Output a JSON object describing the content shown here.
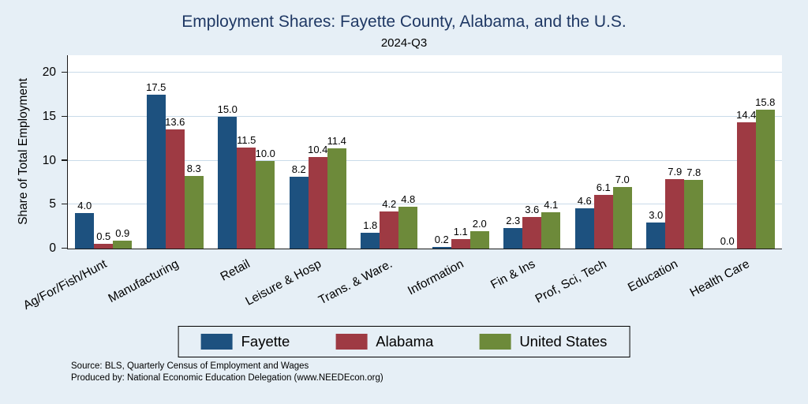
{
  "chart_data": {
    "type": "bar",
    "title": "Employment Shares: Fayette County, Alabama, and the U.S.",
    "subtitle": "2024-Q3",
    "ylabel": "Share of Total Employment",
    "ylim": [
      0,
      20
    ],
    "yticks": [
      0,
      5,
      10,
      15,
      20
    ],
    "grid": true,
    "legend_position": "bottom",
    "background_color": "#e6eff6",
    "plot_background_color": "#ffffff",
    "title_color": "#1f3864",
    "categories": [
      "Ag/For/Fish/Hunt",
      "Manufacturing",
      "Retail",
      "Leisure & Hosp",
      "Trans. & Ware.",
      "Information",
      "Fin & Ins",
      "Prof, Sci, Tech",
      "Education",
      "Health Care"
    ],
    "series": [
      {
        "name": "Fayette",
        "color": "#1d517f",
        "values": [
          4.0,
          17.5,
          15.0,
          8.2,
          1.8,
          0.2,
          2.3,
          4.6,
          3.0,
          0.0
        ]
      },
      {
        "name": "Alabama",
        "color": "#9e3a43",
        "values": [
          0.5,
          13.6,
          11.5,
          10.4,
          4.2,
          1.1,
          3.6,
          6.1,
          7.9,
          14.4
        ]
      },
      {
        "name": "United States",
        "color": "#6d8a3a",
        "values": [
          0.9,
          8.3,
          10.0,
          11.4,
          4.8,
          2.0,
          4.1,
          7.0,
          7.8,
          15.8
        ]
      }
    ]
  },
  "footer": {
    "line1": "Source: BLS, Quarterly Census of Employment and Wages",
    "line2": "Produced by: National Economic Education Delegation (www.NEEDEcon.org)"
  }
}
